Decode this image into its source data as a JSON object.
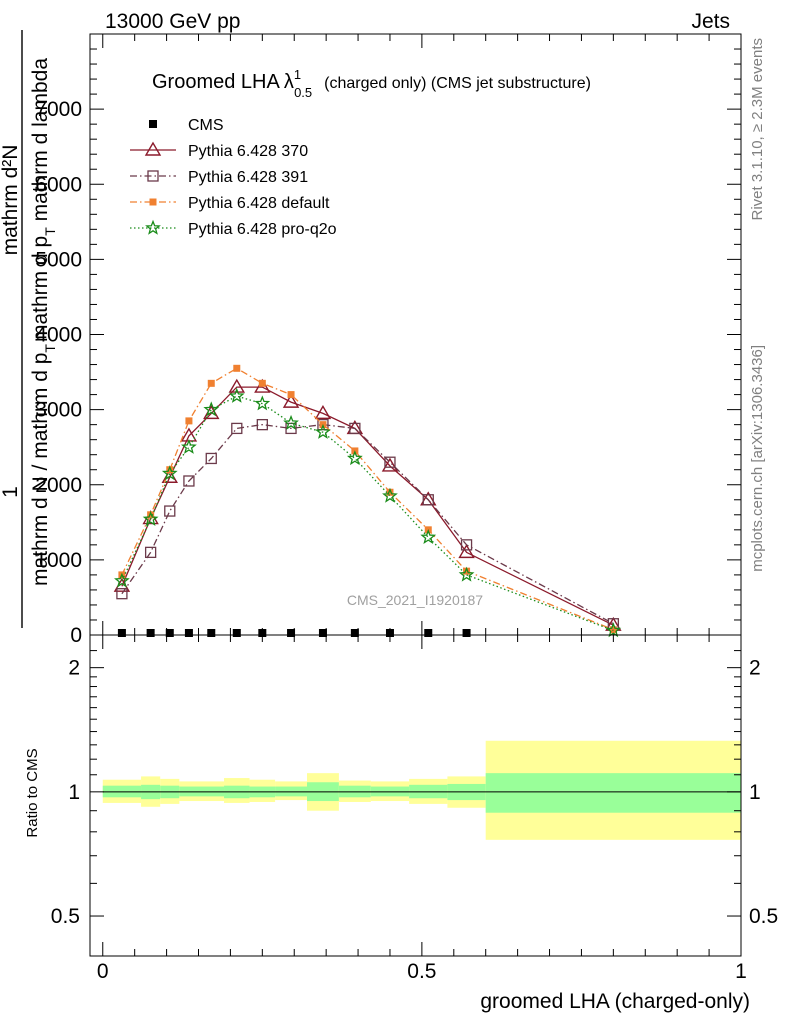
{
  "header": {
    "left": "13000 GeV pp",
    "right": "Jets"
  },
  "side_labels": {
    "rivet": "Rivet 3.1.10, ≥ 2.3M events",
    "mcplots": "mcplots.cern.ch [arXiv:1306.3436]"
  },
  "chart_data": [
    {
      "type": "line",
      "title": "Groomed LHA",
      "title_lambda": "λ",
      "title_sup": "1",
      "title_sub": "0.5",
      "title_rest": "(charged only) (CMS jet substructure)",
      "watermark": "CMS_2021_I1920187",
      "ylabel_top": "mathrm d²N",
      "ylabel_top_line2": "mathrm d p",
      "ylabel_top_line2_sub": "T",
      "ylabel_top_line2_rest": "mathrm d lambda",
      "ylabel_num": "1",
      "ylabel_bottom": "mathrm d N / mathrm d p",
      "ylabel_bottom_sub": "T",
      "xlim": [
        -0.02,
        1.0
      ],
      "ylim": [
        0,
        8000
      ],
      "yticks": [
        0,
        1000,
        2000,
        3000,
        4000,
        5000,
        6000,
        7000
      ],
      "ytick_labels": [
        "0",
        "1000",
        "2000",
        "3000",
        "4000",
        "5000",
        "6000",
        "7000"
      ],
      "cms_x": [
        0.03,
        0.075,
        0.105,
        0.135,
        0.17,
        0.21,
        0.25,
        0.295,
        0.345,
        0.395,
        0.45,
        0.51,
        0.57
      ],
      "cms_y": [
        0,
        0,
        0,
        0,
        0,
        0,
        0,
        0,
        0,
        0,
        0,
        0,
        0
      ],
      "series": [
        {
          "name": "CMS",
          "marker": "square-filled",
          "color": "#000000",
          "x": [
            0.03,
            0.075,
            0.105,
            0.135,
            0.17,
            0.21,
            0.25,
            0.295,
            0.345,
            0.395,
            0.45,
            0.51,
            0.57
          ],
          "y": [
            0,
            0,
            0,
            0,
            0,
            0,
            0,
            0,
            0,
            0,
            0,
            0,
            0
          ]
        },
        {
          "name": "Pythia 6.428 370",
          "marker": "triangle-open",
          "line": "solid",
          "color": "#8b1a2b",
          "x": [
            0.03,
            0.075,
            0.105,
            0.135,
            0.17,
            0.21,
            0.25,
            0.295,
            0.345,
            0.395,
            0.45,
            0.51,
            0.57,
            0.8
          ],
          "y": [
            650,
            1550,
            2100,
            2650,
            2950,
            3300,
            3300,
            3100,
            2950,
            2750,
            2250,
            1800,
            1100,
            130
          ]
        },
        {
          "name": "Pythia 6.428 391",
          "marker": "square-open",
          "line": "dashdot",
          "color": "#6b3a4a",
          "x": [
            0.03,
            0.075,
            0.105,
            0.135,
            0.17,
            0.21,
            0.25,
            0.295,
            0.345,
            0.395,
            0.45,
            0.51,
            0.57,
            0.8
          ],
          "y": [
            550,
            1100,
            1650,
            2050,
            2350,
            2750,
            2800,
            2750,
            2800,
            2750,
            2300,
            1800,
            1200,
            150
          ]
        },
        {
          "name": "Pythia 6.428 default",
          "marker": "square-filled-small",
          "line": "dashdot",
          "color": "#f08030",
          "x": [
            0.03,
            0.075,
            0.105,
            0.135,
            0.17,
            0.21,
            0.25,
            0.295,
            0.345,
            0.395,
            0.45,
            0.51,
            0.57,
            0.8
          ],
          "y": [
            800,
            1600,
            2200,
            2850,
            3350,
            3550,
            3350,
            3200,
            2800,
            2450,
            1900,
            1400,
            850,
            70
          ]
        },
        {
          "name": "Pythia 6.428 pro-q2o",
          "marker": "star-open",
          "line": "dotted",
          "color": "#1a8c1a",
          "x": [
            0.03,
            0.075,
            0.105,
            0.135,
            0.17,
            0.21,
            0.25,
            0.295,
            0.345,
            0.395,
            0.45,
            0.51,
            0.57,
            0.8
          ],
          "y": [
            720,
            1540,
            2150,
            2500,
            3000,
            3180,
            3080,
            2820,
            2700,
            2350,
            1850,
            1300,
            800,
            60
          ]
        }
      ]
    },
    {
      "type": "area",
      "ylabel": "Ratio to CMS",
      "xlabel": "groomed LHA (charged-only)",
      "xlim": [
        -0.02,
        1.0
      ],
      "ylim": [
        0.4,
        2.4
      ],
      "log_y": true,
      "yticks": [
        0.5,
        1,
        2
      ],
      "ytick_labels": [
        "0.5",
        "1",
        "2"
      ],
      "xticks": [
        0,
        0.5,
        1
      ],
      "xtick_labels": [
        "0",
        "0.5",
        "1"
      ],
      "bins": [
        {
          "x0": 0.0,
          "x1": 0.06,
          "inner": [
            0.97,
            1.035
          ],
          "outer": [
            0.94,
            1.07
          ]
        },
        {
          "x0": 0.06,
          "x1": 0.09,
          "inner": [
            0.96,
            1.04
          ],
          "outer": [
            0.92,
            1.09
          ]
        },
        {
          "x0": 0.09,
          "x1": 0.12,
          "inner": [
            0.965,
            1.035
          ],
          "outer": [
            0.935,
            1.075
          ]
        },
        {
          "x0": 0.12,
          "x1": 0.15,
          "inner": [
            0.975,
            1.03
          ],
          "outer": [
            0.95,
            1.06
          ]
        },
        {
          "x0": 0.15,
          "x1": 0.19,
          "inner": [
            0.975,
            1.03
          ],
          "outer": [
            0.95,
            1.06
          ]
        },
        {
          "x0": 0.19,
          "x1": 0.23,
          "inner": [
            0.965,
            1.035
          ],
          "outer": [
            0.94,
            1.08
          ]
        },
        {
          "x0": 0.23,
          "x1": 0.27,
          "inner": [
            0.97,
            1.03
          ],
          "outer": [
            0.945,
            1.07
          ]
        },
        {
          "x0": 0.27,
          "x1": 0.32,
          "inner": [
            0.975,
            1.03
          ],
          "outer": [
            0.955,
            1.06
          ]
        },
        {
          "x0": 0.32,
          "x1": 0.37,
          "inner": [
            0.95,
            1.055
          ],
          "outer": [
            0.9,
            1.11
          ]
        },
        {
          "x0": 0.37,
          "x1": 0.42,
          "inner": [
            0.97,
            1.035
          ],
          "outer": [
            0.945,
            1.065
          ]
        },
        {
          "x0": 0.42,
          "x1": 0.48,
          "inner": [
            0.975,
            1.03
          ],
          "outer": [
            0.95,
            1.06
          ]
        },
        {
          "x0": 0.48,
          "x1": 0.54,
          "inner": [
            0.965,
            1.04
          ],
          "outer": [
            0.935,
            1.075
          ]
        },
        {
          "x0": 0.54,
          "x1": 0.6,
          "inner": [
            0.955,
            1.045
          ],
          "outer": [
            0.915,
            1.09
          ]
        },
        {
          "x0": 0.6,
          "x1": 1.0,
          "inner": [
            0.89,
            1.11
          ],
          "outer": [
            0.765,
            1.33
          ]
        }
      ],
      "inner_color": "#99ff99",
      "outer_color": "#ffff99",
      "reference_line": 1
    }
  ]
}
